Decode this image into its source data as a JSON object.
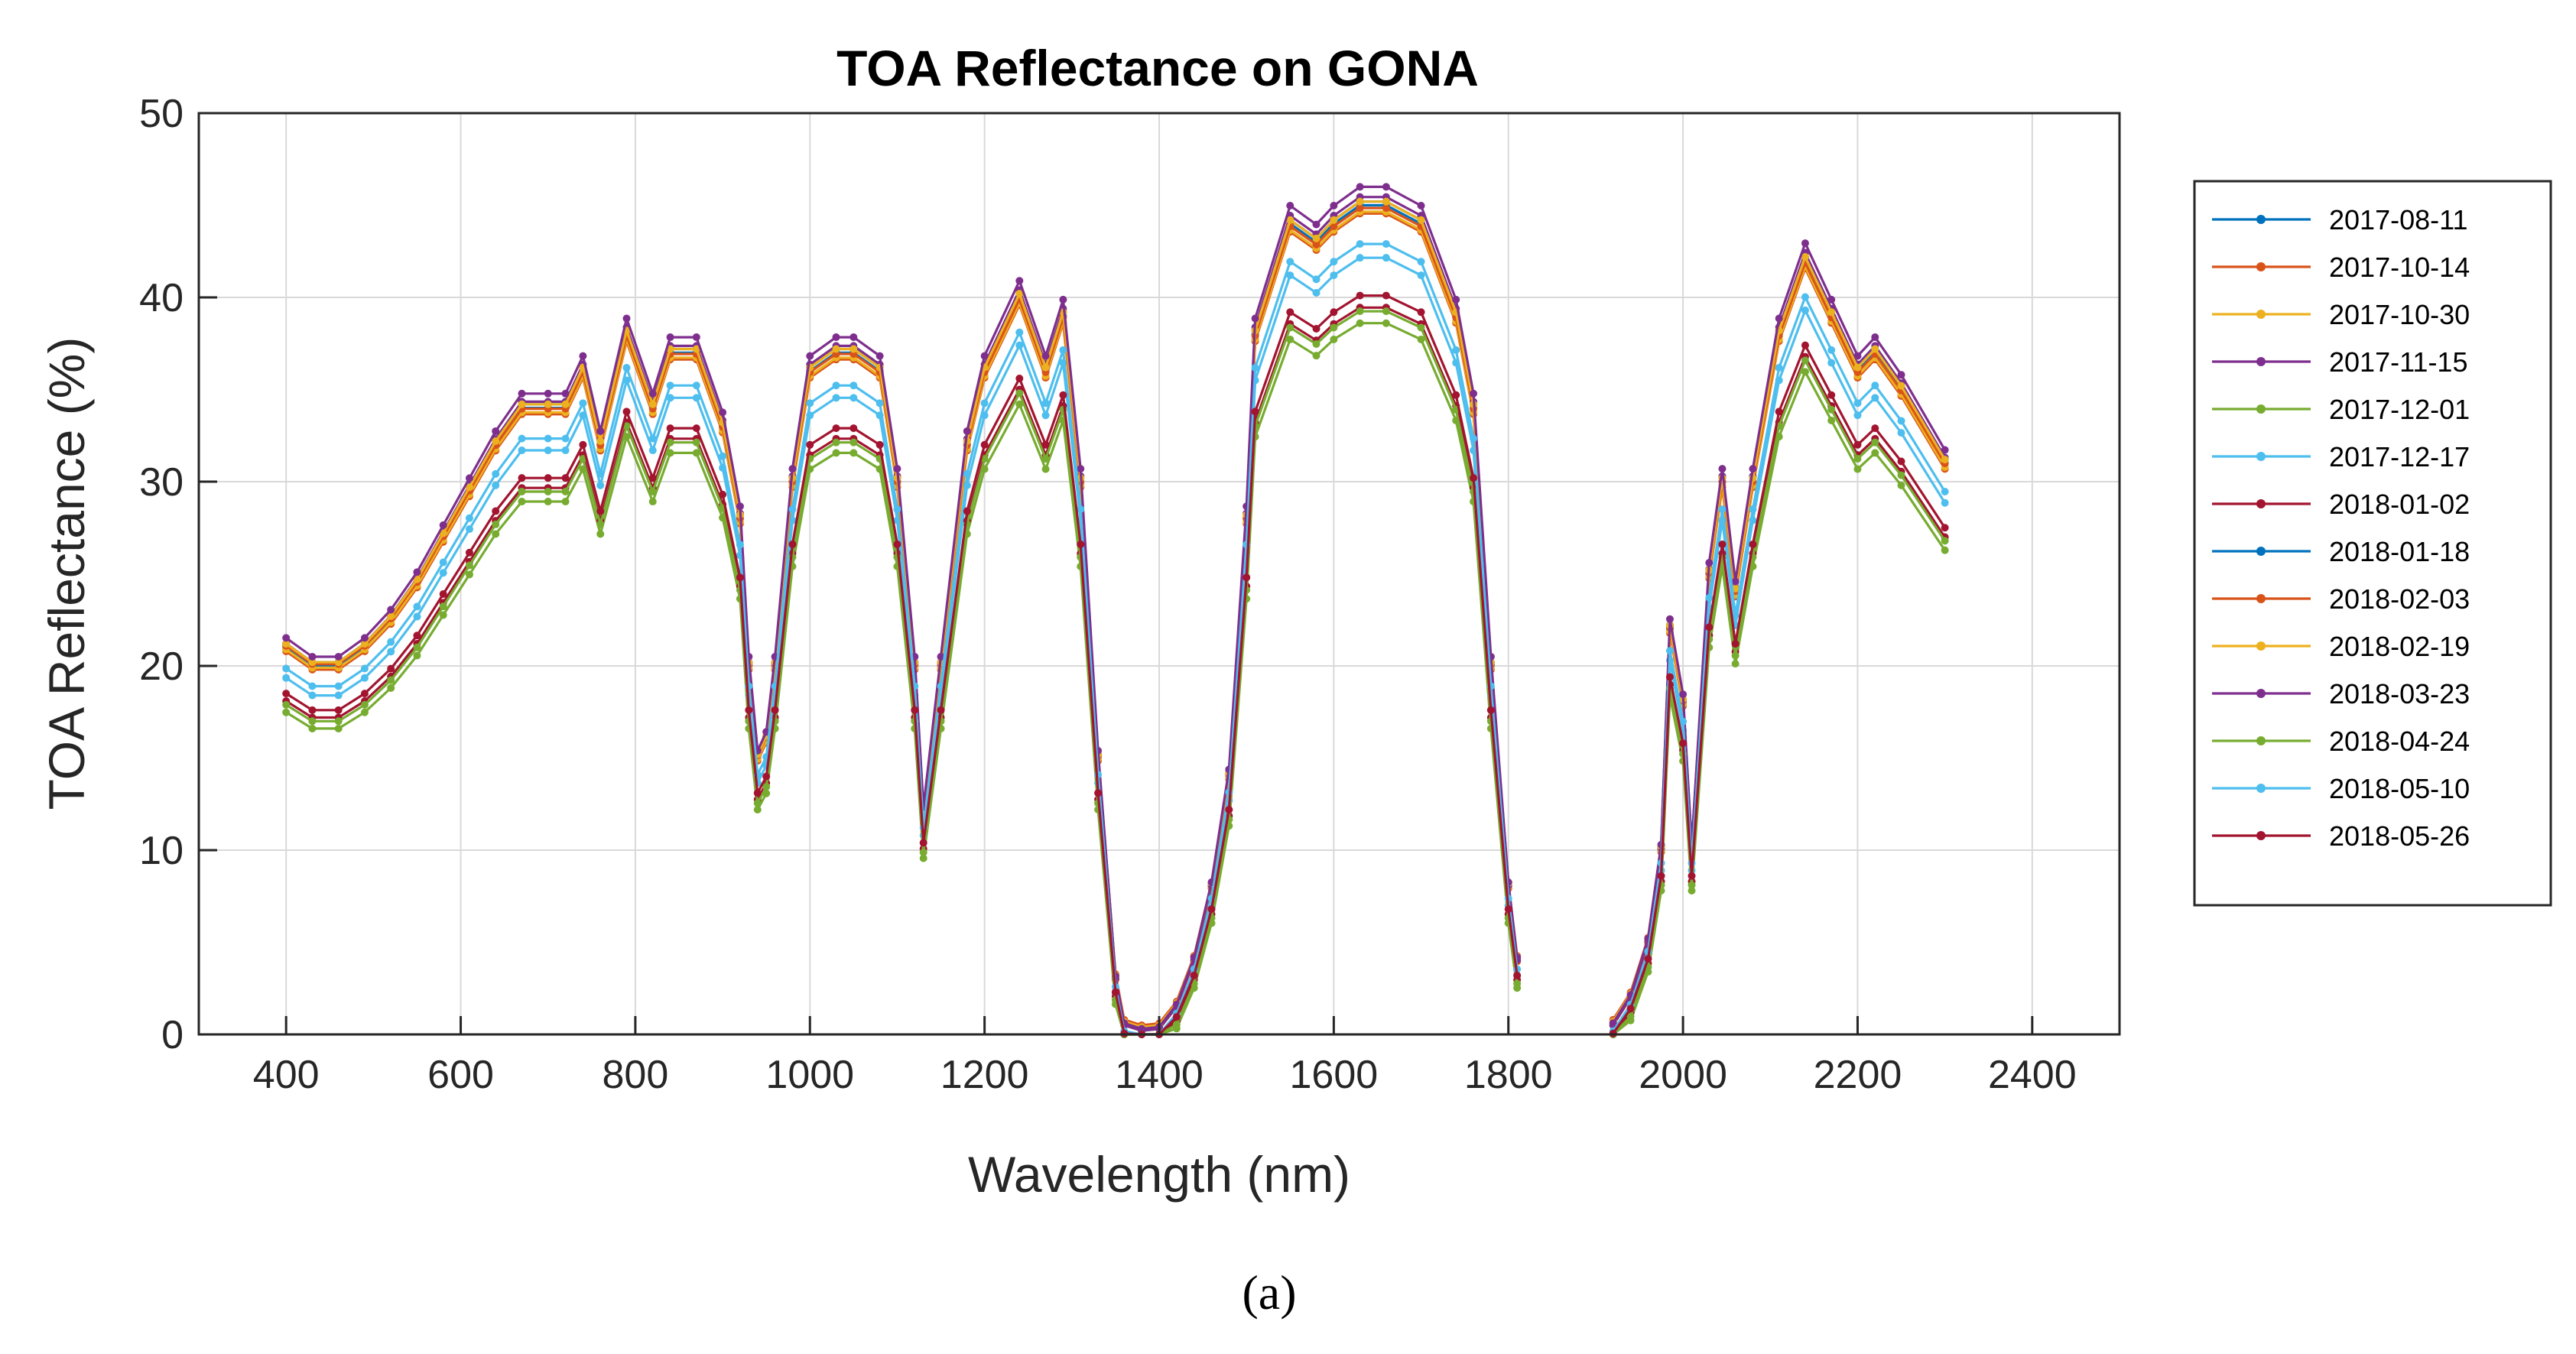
{
  "chart_data": {
    "type": "line",
    "title": "TOA Reflectance on GONA",
    "xlabel": "Wavelength (nm)",
    "ylabel": "TOA Reflectance (%)",
    "xlim": [
      300,
      2500
    ],
    "ylim": [
      0,
      50
    ],
    "xticks": [
      "400",
      "600",
      "800",
      "1000",
      "1200",
      "1400",
      "1600",
      "1800",
      "2000",
      "2200",
      "2400"
    ],
    "yticks": [
      "0",
      "10",
      "20",
      "30",
      "40",
      "50"
    ],
    "grid": true,
    "legend_position": "outside-right",
    "caption": "(a)",
    "base_profile": {
      "x": [
        400,
        430,
        460,
        490,
        520,
        550,
        580,
        610,
        640,
        670,
        700,
        720,
        740,
        760,
        790,
        820,
        840,
        870,
        900,
        920,
        930,
        940,
        950,
        960,
        980,
        1000,
        1030,
        1050,
        1080,
        1100,
        1120,
        1130,
        1150,
        1180,
        1200,
        1240,
        1270,
        1290,
        1310,
        1330,
        1350,
        1360,
        1380,
        1400,
        1420,
        1440,
        1460,
        1480,
        1500,
        1510,
        1550,
        1580,
        1600,
        1630,
        1660,
        1700,
        1740,
        1760,
        1780,
        1800,
        1810,
        1920,
        1940,
        1960,
        1975,
        1985,
        2000,
        2010,
        2030,
        2045,
        2060,
        2080,
        2110,
        2140,
        2170,
        2200,
        2220,
        2250,
        2300
      ],
      "y": [
        21,
        20,
        20,
        21,
        22.5,
        24.5,
        27,
        29.5,
        32,
        34,
        34,
        34,
        36,
        32,
        38,
        34,
        37,
        37,
        33,
        28,
        20,
        15,
        16,
        20,
        30,
        36,
        37,
        37,
        36,
        30,
        20,
        12,
        20,
        32,
        36,
        40,
        36,
        39,
        30,
        15,
        3,
        0.5,
        0.2,
        0.3,
        1.5,
        4,
        8,
        14,
        28,
        38,
        44,
        43,
        44,
        45,
        45,
        44,
        39,
        34,
        20,
        8,
        4,
        0.5,
        2,
        5,
        10,
        22,
        18,
        10,
        25,
        30,
        24,
        30,
        38,
        42,
        39,
        36,
        37,
        35,
        31
      ]
    },
    "series": [
      {
        "name": "2017-08-11",
        "color": "#0072BD",
        "factor": 1.0,
        "offset": 0.0
      },
      {
        "name": "2017-10-14",
        "color": "#D95319",
        "factor": 0.99,
        "offset": 0.0
      },
      {
        "name": "2017-10-30",
        "color": "#EDB120",
        "factor": 0.99,
        "offset": 0.1
      },
      {
        "name": "2017-11-15",
        "color": "#7E2F8E",
        "factor": 1.01,
        "offset": 0.0
      },
      {
        "name": "2017-12-01",
        "color": "#77AC30",
        "factor": 0.88,
        "offset": -1.0
      },
      {
        "name": "2017-12-17",
        "color": "#4DBEEE",
        "factor": 0.95,
        "offset": -0.6
      },
      {
        "name": "2018-01-02",
        "color": "#A2142F",
        "factor": 0.89,
        "offset": -0.6
      },
      {
        "name": "2018-01-18",
        "color": "#0072BD",
        "factor": 1.0,
        "offset": 0.2
      },
      {
        "name": "2018-02-03",
        "color": "#D95319",
        "factor": 0.99,
        "offset": 0.3
      },
      {
        "name": "2018-02-19",
        "color": "#EDB120",
        "factor": 1.0,
        "offset": 0.2
      },
      {
        "name": "2018-03-23",
        "color": "#7E2F8E",
        "factor": 1.02,
        "offset": 0.1
      },
      {
        "name": "2018-04-24",
        "color": "#77AC30",
        "factor": 0.89,
        "offset": -0.8
      },
      {
        "name": "2018-05-10",
        "color": "#4DBEEE",
        "factor": 0.96,
        "offset": -0.3
      },
      {
        "name": "2018-05-26",
        "color": "#A2142F",
        "factor": 0.9,
        "offset": -0.4
      }
    ]
  }
}
